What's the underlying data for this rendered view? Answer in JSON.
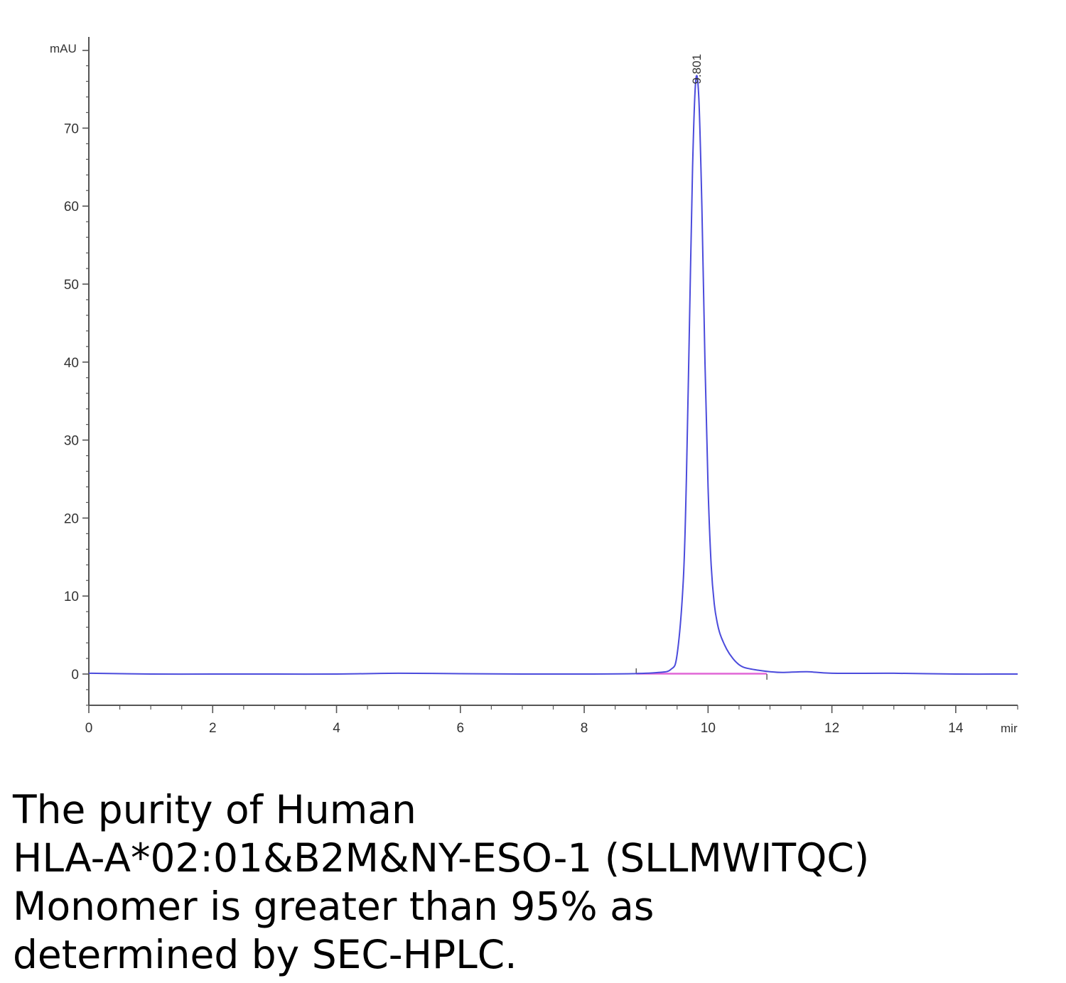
{
  "chart_data": {
    "type": "line",
    "title": "",
    "xlabel": "",
    "ylabel": "",
    "x_unit": "mir",
    "y_unit": "mAU",
    "xlim": [
      0,
      15
    ],
    "ylim": [
      -4,
      80
    ],
    "x_ticks": [
      "0",
      "2",
      "4",
      "6",
      "8",
      "10",
      "12",
      "14"
    ],
    "y_ticks": [
      "0",
      "10",
      "20",
      "30",
      "40",
      "50",
      "60",
      "70"
    ],
    "grid": false,
    "colors": {
      "trace": "#4b4bdc",
      "baseline": "#e066d6",
      "axis": "#555555"
    },
    "series": [
      {
        "x": [
          0,
          1,
          2,
          3,
          4,
          5,
          6,
          7,
          8,
          8.8,
          9.2,
          9.4,
          9.5,
          9.6,
          9.65,
          9.7,
          9.75,
          9.8,
          9.85,
          9.9,
          9.95,
          10.0,
          10.05,
          10.1,
          10.15,
          10.2,
          10.3,
          10.4,
          10.5,
          10.6,
          10.8,
          11.0,
          11.2,
          11.6,
          12.0,
          13.0,
          14.0,
          15.0
        ],
        "values": [
          0.1,
          0.0,
          0.0,
          0.0,
          0.0,
          0.1,
          0.05,
          0.0,
          0.0,
          0.05,
          0.2,
          0.6,
          2.5,
          12.0,
          25.0,
          45.0,
          65.0,
          76.0,
          74.0,
          60.0,
          40.0,
          24.0,
          14.0,
          9.0,
          6.5,
          5.0,
          3.2,
          2.0,
          1.2,
          0.8,
          0.5,
          0.3,
          0.2,
          0.3,
          0.1,
          0.1,
          0.0,
          0.0
        ]
      }
    ],
    "peak": {
      "x": 9.801,
      "y": 76.0,
      "label": "9.801"
    },
    "integration_baseline": {
      "x_start": 8.84,
      "x_end": 10.95
    }
  },
  "caption": {
    "lines": [
      "The purity of Human",
      "HLA-A*02:01&B2M&NY-ESO-1 (SLLMWITQC)",
      "Monomer is greater than 95% as",
      "determined by SEC-HPLC."
    ]
  }
}
